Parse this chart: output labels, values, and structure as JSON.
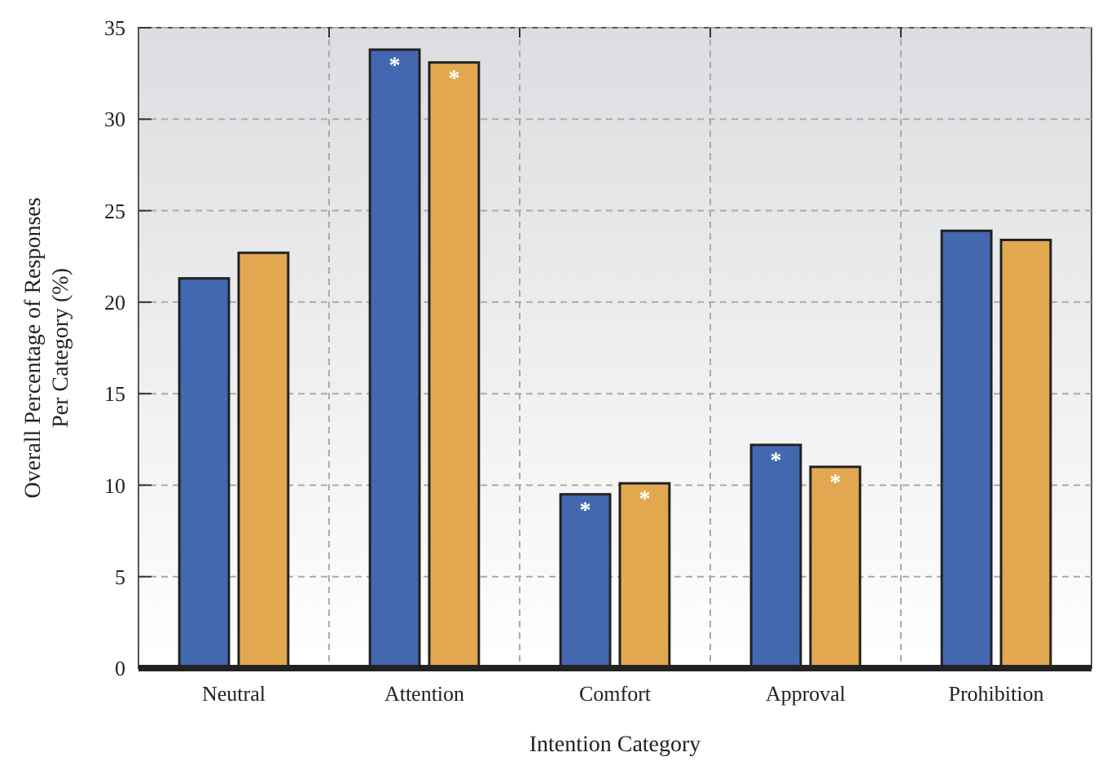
{
  "chart_data": {
    "type": "bar",
    "xlabel": "Intention Category",
    "ylabel": "Overall Percentage of Responses\nPer Category (%)",
    "categories": [
      "Neutral",
      "Attention",
      "Comfort",
      "Approval",
      "Prohibition"
    ],
    "series": [
      {
        "color": "#4468b0",
        "values": [
          21.3,
          33.8,
          9.5,
          12.2,
          23.9
        ],
        "value_labels": [
          null,
          "*",
          "*",
          "*",
          null
        ]
      },
      {
        "color": "#e2a850",
        "values": [
          22.7,
          33.1,
          10.1,
          11.0,
          23.4
        ],
        "value_labels": [
          null,
          "*",
          "*",
          "*",
          null
        ]
      }
    ],
    "ylim": [
      0,
      35
    ],
    "yticks": [
      0,
      5,
      10,
      15,
      20,
      25,
      30,
      35
    ],
    "grid": true
  }
}
